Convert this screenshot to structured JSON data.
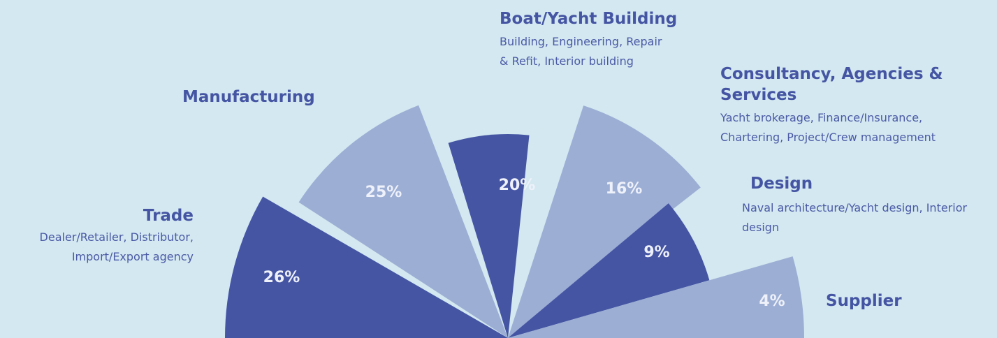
{
  "chart_data": {
    "type": "polar-area",
    "categories": [
      "Trade",
      "Manufacturing",
      "Boat/Yacht Building",
      "Consultancy, Agencies & Services",
      "Design",
      "Supplier"
    ],
    "descriptions": [
      "Dealer/Retailer, Distributor, Import/Export agency",
      null,
      "Building, Engineering, Repair & Refit, Interior building",
      "Yacht brokerage, Finance/Insurance, Chartering, Project/Crew management",
      "Naval architecture/Yacht design, Interior design",
      null
    ],
    "values": [
      26,
      25,
      20,
      16,
      9,
      4
    ],
    "value_labels": [
      "26%",
      "25%",
      "20%",
      "16%",
      "9%",
      "4%"
    ],
    "colors": [
      "#4555a3",
      "#9caed4",
      "#4555a3",
      "#9caed4",
      "#4555a3",
      "#9caed4"
    ]
  }
}
